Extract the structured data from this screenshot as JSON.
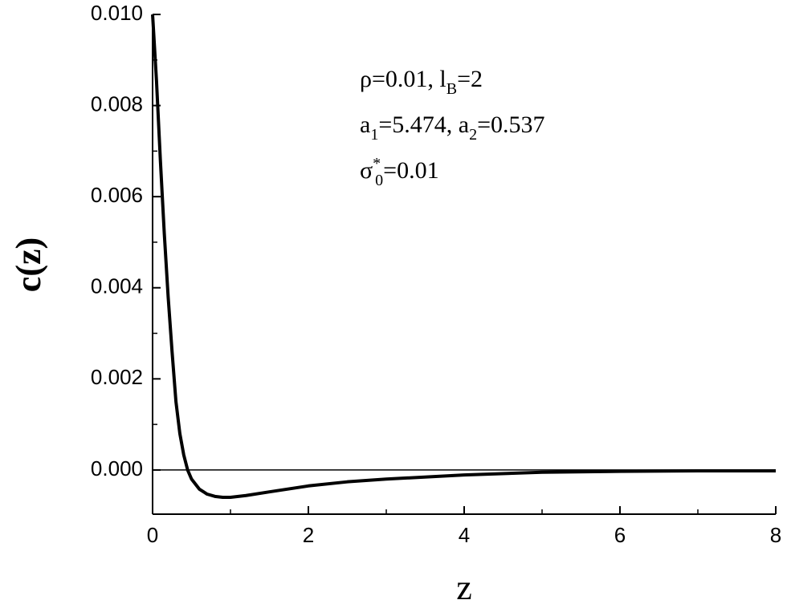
{
  "chart_data": {
    "type": "line",
    "x_label": "z",
    "y_label": "c(z)",
    "x": [
      0,
      0.05,
      0.1,
      0.15,
      0.2,
      0.25,
      0.3,
      0.35,
      0.4,
      0.45,
      0.5,
      0.6,
      0.7,
      0.8,
      0.9,
      1.0,
      1.2,
      1.5,
      2,
      2.5,
      3,
      4,
      5,
      6,
      7,
      8
    ],
    "values": [
      0.01,
      0.00855,
      0.0068,
      0.0052,
      0.0038,
      0.0026,
      0.0015,
      0.0008,
      0.00033,
      0,
      -0.0002,
      -0.00042,
      -0.00053,
      -0.00058,
      -0.0006,
      -0.0006,
      -0.00056,
      -0.00048,
      -0.00035,
      -0.00026,
      -0.0002,
      -0.00011,
      -5e-05,
      -3e-05,
      -2e-05,
      -2e-05
    ],
    "color": "#000000",
    "xlim": [
      0,
      8
    ],
    "ylim": [
      -0.00097,
      0.01
    ],
    "xticks": [
      0,
      2,
      4,
      6,
      8
    ],
    "xminor": [
      1,
      3,
      5,
      7
    ],
    "yticks": [
      {
        "value": 0,
        "label": "0.000"
      },
      {
        "value": 0.002,
        "label": "0.002"
      },
      {
        "value": 0.004,
        "label": "0.004"
      },
      {
        "value": 0.006,
        "label": "0.006"
      },
      {
        "value": 0.008,
        "label": "0.008"
      },
      {
        "value": 0.01,
        "label": "0.010"
      }
    ],
    "yminor": [
      0.001,
      0.003,
      0.005,
      0.007,
      0.009
    ],
    "reference_line": 0,
    "annotations": [
      [
        {
          "text": "ρ=0.01, l"
        },
        {
          "text": "B",
          "shift": "sub"
        },
        {
          "text": "=2"
        }
      ],
      [
        {
          "text": "a"
        },
        {
          "text": "1",
          "shift": "sub"
        },
        {
          "text": "=5.474, a"
        },
        {
          "text": "2",
          "shift": "sub"
        },
        {
          "text": "=0.537"
        }
      ],
      [
        {
          "text": "σ"
        },
        {
          "text": "*",
          "shift": "super"
        },
        {
          "text": "0",
          "shift": "sub"
        },
        {
          "text": "=0.01"
        }
      ]
    ]
  }
}
